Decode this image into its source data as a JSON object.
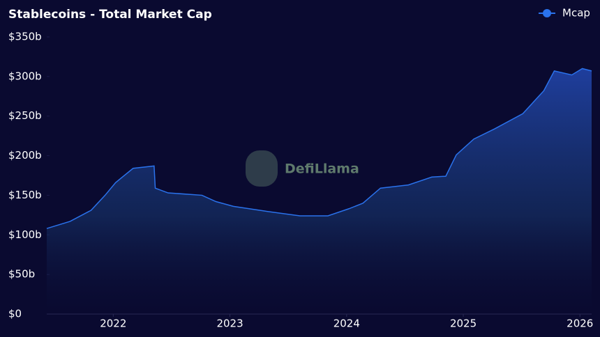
{
  "chart_data": {
    "type": "area",
    "title": "Stablecoins - Total Market Cap",
    "watermark": "DefiLlama",
    "x": [
      2021.43,
      2021.63,
      2021.81,
      2021.93,
      2022.02,
      2022.17,
      2022.35,
      2022.36,
      2022.47,
      2022.76,
      2022.88,
      2023.03,
      2023.3,
      2023.6,
      2023.84,
      2024.02,
      2024.14,
      2024.29,
      2024.53,
      2024.73,
      2024.85,
      2024.94,
      2025.09,
      2025.27,
      2025.51,
      2025.69,
      2025.78,
      2025.93,
      2026.02,
      2026.1
    ],
    "series": [
      {
        "name": "Mcap",
        "color": "#2a72ec",
        "values": [
          108,
          117,
          131,
          150,
          166,
          184,
          187,
          159,
          153,
          150,
          142,
          136,
          130,
          124,
          124,
          133,
          140,
          159,
          163,
          173,
          174,
          201,
          221,
          234,
          253,
          282,
          307,
          302,
          310,
          307
        ]
      }
    ],
    "xlim": [
      2021.43,
      2026.1
    ],
    "xticks": [
      2022,
      2023,
      2024,
      2025,
      2026
    ],
    "ylim": [
      0,
      350
    ],
    "yticks": [
      {
        "value": 0,
        "label": "$0"
      },
      {
        "value": 50,
        "label": "$50b"
      },
      {
        "value": 100,
        "label": "$100b"
      },
      {
        "value": 150,
        "label": "$150b"
      },
      {
        "value": 200,
        "label": "$200b"
      },
      {
        "value": 250,
        "label": "$250b"
      },
      {
        "value": 300,
        "label": "$300b"
      },
      {
        "value": 350,
        "label": "$350b"
      }
    ],
    "legend": "top-right"
  }
}
